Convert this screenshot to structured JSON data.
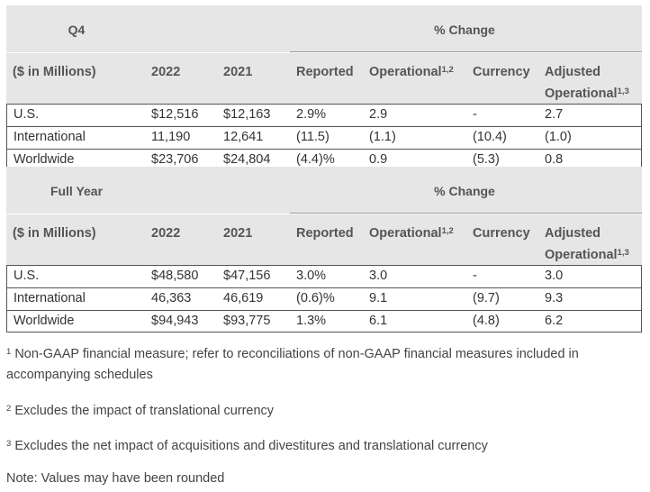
{
  "tables": [
    {
      "period": "Q4",
      "pct_change": "% Change",
      "col_label": "($ in Millions)",
      "col_2022": "2022",
      "col_2021": "2021",
      "col_reported": "Reported",
      "col_operational": "Operational",
      "col_operational_sup": "1,2",
      "col_currency": "Currency",
      "col_adjusted": "Adjusted",
      "col_adj_operational": "Operational",
      "col_adj_operational_sup": "1,3",
      "rows": [
        {
          "region": "U.S.",
          "v2022": "$12,516",
          "v2021": "$12,163",
          "reported": "2.9%",
          "operational": "2.9",
          "currency": "-",
          "adjusted": "2.7"
        },
        {
          "region": "International",
          "v2022": "11,190",
          "v2021": "12,641",
          "reported": "(11.5)",
          "operational": "(1.1)",
          "currency": "(10.4)",
          "adjusted": "(1.0)"
        },
        {
          "region": "Worldwide",
          "v2022": "$23,706",
          "v2021": "$24,804",
          "reported": "(4.4)%",
          "operational": "0.9",
          "currency": "(5.3)",
          "adjusted": "0.8"
        }
      ]
    },
    {
      "period": "Full Year",
      "pct_change": "% Change",
      "col_label": "($ in Millions)",
      "col_2022": "2022",
      "col_2021": "2021",
      "col_reported": "Reported",
      "col_operational": "Operational",
      "col_operational_sup": "1,2",
      "col_currency": "Currency",
      "col_adjusted": "Adjusted",
      "col_adj_operational": "Operational",
      "col_adj_operational_sup": "1,3",
      "rows": [
        {
          "region": "U.S.",
          "v2022": "$48,580",
          "v2021": "$47,156",
          "reported": "3.0%",
          "operational": "3.0",
          "currency": "-",
          "adjusted": "3.0"
        },
        {
          "region": "International",
          "v2022": "46,363",
          "v2021": "46,619",
          "reported": "(0.6)%",
          "operational": "9.1",
          "currency": "(9.7)",
          "adjusted": "9.3"
        },
        {
          "region": "Worldwide",
          "v2022": "$94,943",
          "v2021": "$93,775",
          "reported": "1.3%",
          "operational": "6.1",
          "currency": "(4.8)",
          "adjusted": "6.2"
        }
      ]
    }
  ],
  "footnotes": [
    {
      "sup": "1",
      "text": " Non-GAAP financial measure; refer to reconciliations of non-GAAP financial measures included in accompanying schedules"
    },
    {
      "sup": "2",
      "text": " Excludes the impact of translational currency"
    },
    {
      "sup": "3",
      "text": " Excludes the net impact of acquisitions and divestitures and translational currency"
    }
  ],
  "note": "Note: Values may have been rounded"
}
